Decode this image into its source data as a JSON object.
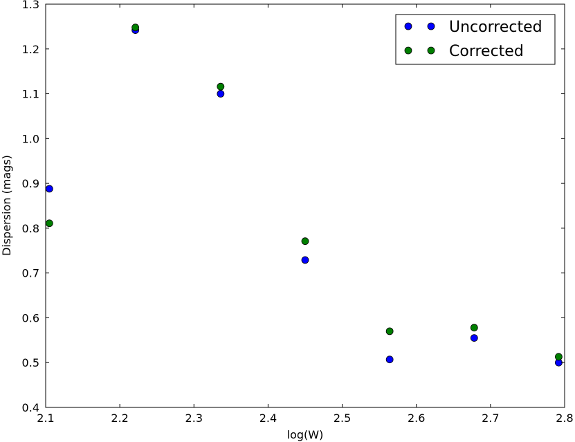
{
  "chart_data": {
    "type": "scatter",
    "xlabel": "log(W)",
    "ylabel": "Dispersion (mags)",
    "xlim": [
      2.1,
      2.8
    ],
    "ylim": [
      0.4,
      1.3
    ],
    "xticks": [
      "2.1",
      "2.2",
      "2.3",
      "2.4",
      "2.5",
      "2.6",
      "2.7",
      "2.8"
    ],
    "yticks": [
      "0.4",
      "0.5",
      "0.6",
      "0.7",
      "0.8",
      "0.9",
      "1.0",
      "1.1",
      "1.2",
      "1.3"
    ],
    "grid": false,
    "legend_position": "top-right",
    "series": [
      {
        "name": "Uncorrected",
        "color": "#0000ff",
        "x": [
          2.105,
          2.221,
          2.336,
          2.45,
          2.564,
          2.678,
          2.792
        ],
        "y": [
          0.888,
          1.242,
          1.1,
          0.729,
          0.507,
          0.555,
          0.5
        ]
      },
      {
        "name": "Corrected",
        "color": "#007f00",
        "x": [
          2.105,
          2.221,
          2.336,
          2.45,
          2.564,
          2.678,
          2.792
        ],
        "y": [
          0.811,
          1.248,
          1.116,
          0.771,
          0.57,
          0.578,
          0.513
        ]
      }
    ]
  }
}
